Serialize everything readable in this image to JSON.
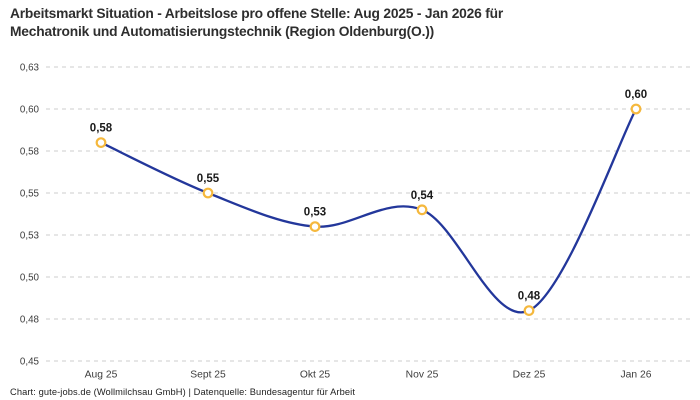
{
  "page": {
    "title_line1": "Arbeitsmarkt Situation - Arbeitslose pro offene Stelle: Aug 2025 - Jan 2026 für",
    "title_line2": "Mechatronik und Automatisierungstechnik (Region Oldenburg(O.))",
    "footer": "Chart: gute-jobs.de (Wollmilchsau GmbH) | Datenquelle: Bundesagentur für Arbeit"
  },
  "chart_data": {
    "type": "line",
    "title": "Arbeitsmarkt Situation - Arbeitslose pro offene Stelle: Aug 2025 - Jan 2026 für Mechatronik und Automatisierungstechnik (Region Oldenburg(O.))",
    "categories": [
      "Aug 25",
      "Sept 25",
      "Okt 25",
      "Nov 25",
      "Dez 25",
      "Jan 26"
    ],
    "values": [
      0.58,
      0.55,
      0.53,
      0.54,
      0.48,
      0.6
    ],
    "point_labels": [
      "0,58",
      "0,55",
      "0,53",
      "0,54",
      "0,48",
      "0,60"
    ],
    "xlabel": "",
    "ylabel": "",
    "ylim": [
      0.45,
      0.625
    ],
    "ytick_values": [
      0.625,
      0.6,
      0.575,
      0.55,
      0.525,
      0.5,
      0.475,
      0.45
    ],
    "ytick_labels": [
      "0,63",
      "0,60",
      "0,58",
      "0,55",
      "0,53",
      "0,50",
      "0,48",
      "0,45"
    ],
    "grid": "horizontal-dashed",
    "legend": "none",
    "smoothing": "spline",
    "colors": {
      "line": "#23379b",
      "marker_ring": "#f5b83d",
      "marker_fill": "#ffffff",
      "gridline": "#cccccc",
      "tick_text": "#3c3c3c",
      "point_label_text": "#1a1a1a"
    }
  }
}
